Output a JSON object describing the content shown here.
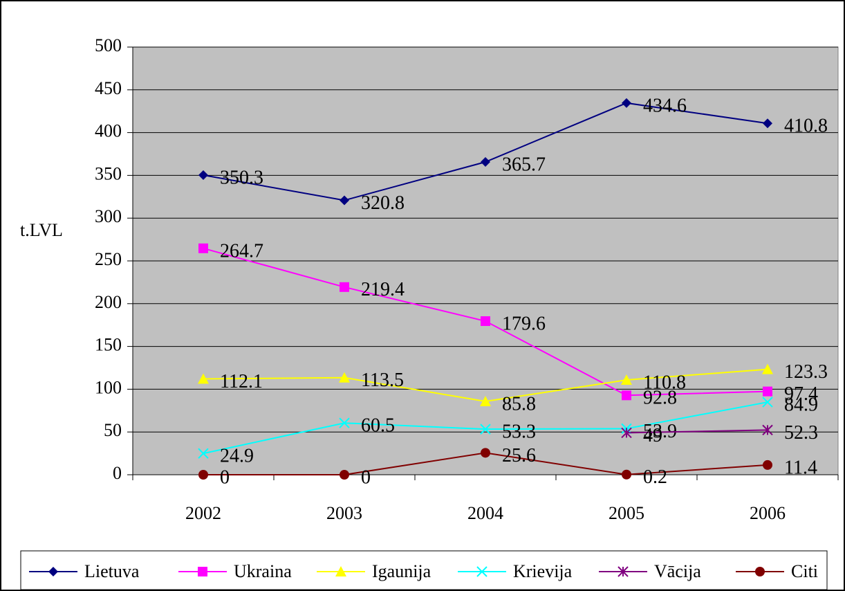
{
  "chart_data": {
    "type": "line",
    "y_label": "t.LVL",
    "categories": [
      "2002",
      "2003",
      "2004",
      "2005",
      "2006"
    ],
    "series": [
      {
        "name": "Lietuva",
        "color": "#000080",
        "marker": "diamond",
        "values": [
          350.3,
          320.8,
          365.7,
          434.6,
          410.8
        ]
      },
      {
        "name": "Ukraina",
        "color": "#ff00ff",
        "marker": "square",
        "values": [
          264.7,
          219.4,
          179.6,
          92.8,
          97.4
        ]
      },
      {
        "name": "Igaunija",
        "color": "#ffff00",
        "marker": "triangle",
        "values": [
          112.1,
          113.5,
          85.8,
          110.8,
          123.3
        ]
      },
      {
        "name": "Krievija",
        "color": "#00ffff",
        "marker": "x",
        "values": [
          24.9,
          60.5,
          53.3,
          53.9,
          84.9
        ]
      },
      {
        "name": "Vācija",
        "color": "#800080",
        "marker": "asterisk",
        "values": [
          null,
          null,
          null,
          49,
          52.3
        ]
      },
      {
        "name": "Citi",
        "color": "#800000",
        "marker": "circle",
        "values": [
          0,
          0,
          25.6,
          0.2,
          11.4
        ]
      }
    ],
    "ylim": [
      0,
      500
    ],
    "yticks": [
      0,
      50,
      100,
      150,
      200,
      250,
      300,
      350,
      400,
      450,
      500
    ],
    "grid": true,
    "legend": "bottom",
    "plot_background": "#c0c0c0"
  }
}
